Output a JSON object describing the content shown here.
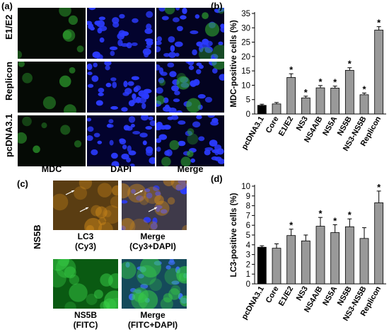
{
  "panels": {
    "a": {
      "label": "(a)",
      "rows": [
        "E1/E2",
        "Replicon",
        "pcDNA3.1"
      ],
      "cols": [
        "MDC",
        "DAPI",
        "Merge"
      ]
    },
    "c": {
      "label": "(c)",
      "side_label": "NS5B",
      "captions": [
        {
          "line1": "LC3",
          "line2": "(Cy3)"
        },
        {
          "line1": "Merge",
          "line2": "(Cy3+DAPI)"
        },
        {
          "line1": "NS5B",
          "line2": "(FITC)"
        },
        {
          "line1": "Merge",
          "line2": "(FITC+DAPI)"
        }
      ]
    }
  },
  "chart_data": [
    {
      "id": "b",
      "panel_label": "(b)",
      "type": "bar",
      "ylabel": "MDC-positive cells (%)",
      "ylim": [
        0,
        35
      ],
      "yticks": [
        0,
        5,
        10,
        15,
        20,
        25,
        30,
        35
      ],
      "categories": [
        "pcDNA3.1",
        "Core",
        "E1/E2",
        "NS3",
        "NS4A/B",
        "NS5A",
        "NS5B",
        "NS3-NS5B",
        "Replicon"
      ],
      "values": [
        3.0,
        3.5,
        12.7,
        5.6,
        9.1,
        9.0,
        15.2,
        6.7,
        29.2
      ],
      "errors": [
        0.4,
        0.5,
        1.3,
        0.6,
        0.8,
        0.7,
        0.9,
        0.6,
        1.2
      ],
      "significance": [
        "",
        "",
        "*",
        "*",
        "*",
        "*",
        "*",
        "*",
        "*"
      ],
      "bar_colors": [
        "#000000",
        "#999999",
        "#999999",
        "#999999",
        "#999999",
        "#999999",
        "#999999",
        "#999999",
        "#999999"
      ]
    },
    {
      "id": "d",
      "panel_label": "(d)",
      "type": "bar",
      "ylabel": "LC3-positive cells (%)",
      "ylim": [
        0,
        10
      ],
      "yticks": [
        0,
        1,
        2,
        3,
        4,
        5,
        6,
        7,
        8,
        9,
        10
      ],
      "categories": [
        "pcDNA3.1",
        "Core",
        "E1/E2",
        "NS3",
        "NS4A/B",
        "NS5A",
        "NS5B",
        "NS3-NS5B",
        "Replicon"
      ],
      "values": [
        3.75,
        3.65,
        4.95,
        4.4,
        5.9,
        5.25,
        5.85,
        4.65,
        8.3
      ],
      "errors": [
        0.15,
        0.45,
        0.65,
        0.6,
        0.9,
        0.8,
        0.8,
        1.1,
        1.2
      ],
      "significance": [
        "",
        "",
        "*",
        "",
        "*",
        "*",
        "*",
        "",
        "*"
      ],
      "bar_colors": [
        "#000000",
        "#999999",
        "#999999",
        "#999999",
        "#999999",
        "#999999",
        "#999999",
        "#999999",
        "#999999"
      ]
    }
  ]
}
